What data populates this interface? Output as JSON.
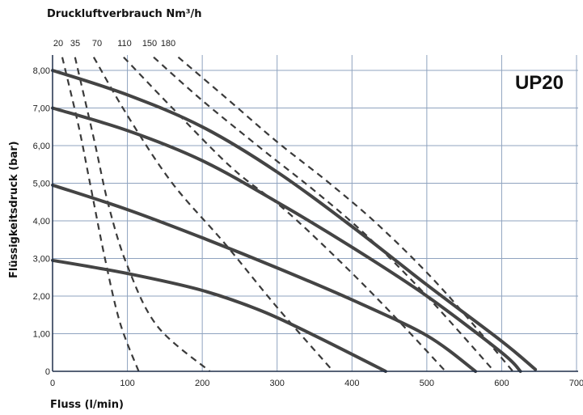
{
  "chart_data": {
    "type": "line",
    "top_title": "Druckluftverbrauch Nm³/h",
    "xlabel": "Fluss (l/min)",
    "ylabel": "Flüssigkeitsdruck (bar)",
    "model_label": "UP20",
    "xlim": [
      0,
      700
    ],
    "ylim": [
      0,
      8.5
    ],
    "x_ticks": [
      "0",
      "100",
      "200",
      "300",
      "400",
      "500",
      "600",
      "700"
    ],
    "y_ticks": [
      "0",
      "1,00",
      "2,00",
      "3,00",
      "4,00",
      "5,00",
      "6,00",
      "7,00",
      "8,00"
    ],
    "air_labels": [
      "20",
      "35",
      "70",
      "110",
      "150",
      "180"
    ],
    "grid": true,
    "pressure_curves": [
      {
        "points": [
          [
            0,
            8.0
          ],
          [
            100,
            7.35
          ],
          [
            200,
            6.5
          ],
          [
            300,
            5.3
          ],
          [
            400,
            3.85
          ],
          [
            500,
            2.3
          ],
          [
            600,
            0.8
          ],
          [
            645,
            0.05
          ]
        ]
      },
      {
        "points": [
          [
            0,
            7.0
          ],
          [
            100,
            6.4
          ],
          [
            200,
            5.6
          ],
          [
            300,
            4.5
          ],
          [
            400,
            3.3
          ],
          [
            500,
            2.0
          ],
          [
            600,
            0.5
          ],
          [
            625,
            0.0
          ]
        ]
      },
      {
        "points": [
          [
            0,
            4.95
          ],
          [
            100,
            4.3
          ],
          [
            200,
            3.55
          ],
          [
            300,
            2.75
          ],
          [
            400,
            1.9
          ],
          [
            500,
            0.95
          ],
          [
            565,
            0.0
          ]
        ]
      },
      {
        "points": [
          [
            0,
            2.95
          ],
          [
            100,
            2.6
          ],
          [
            200,
            2.15
          ],
          [
            280,
            1.6
          ],
          [
            350,
            0.95
          ],
          [
            445,
            0.0
          ]
        ]
      }
    ],
    "air_curves": [
      {
        "name": "20",
        "points": [
          [
            13,
            8.35
          ],
          [
            35,
            6.5
          ],
          [
            50,
            5.0
          ],
          [
            70,
            3.0
          ],
          [
            90,
            1.3
          ],
          [
            115,
            0.0
          ]
        ]
      },
      {
        "name": "35",
        "points": [
          [
            30,
            8.35
          ],
          [
            55,
            6.2
          ],
          [
            75,
            4.4
          ],
          [
            100,
            2.8
          ],
          [
            140,
            1.2
          ],
          [
            210,
            0.0
          ]
        ]
      },
      {
        "name": "70",
        "points": [
          [
            55,
            8.35
          ],
          [
            100,
            6.8
          ],
          [
            160,
            5.0
          ],
          [
            230,
            3.4
          ],
          [
            300,
            1.7
          ],
          [
            375,
            0.0
          ]
        ]
      },
      {
        "name": "110",
        "points": [
          [
            95,
            8.35
          ],
          [
            160,
            7.0
          ],
          [
            240,
            5.4
          ],
          [
            310,
            4.3
          ],
          [
            380,
            3.0
          ],
          [
            450,
            1.6
          ],
          [
            525,
            0.0
          ]
        ]
      },
      {
        "name": "150",
        "points": [
          [
            135,
            8.35
          ],
          [
            200,
            7.2
          ],
          [
            280,
            5.9
          ],
          [
            350,
            4.8
          ],
          [
            420,
            3.6
          ],
          [
            500,
            2.0
          ],
          [
            590,
            0.0
          ]
        ]
      },
      {
        "name": "180",
        "points": [
          [
            168,
            8.35
          ],
          [
            230,
            7.3
          ],
          [
            300,
            6.1
          ],
          [
            370,
            5.0
          ],
          [
            440,
            3.8
          ],
          [
            520,
            2.2
          ],
          [
            615,
            0.0
          ]
        ]
      }
    ]
  }
}
